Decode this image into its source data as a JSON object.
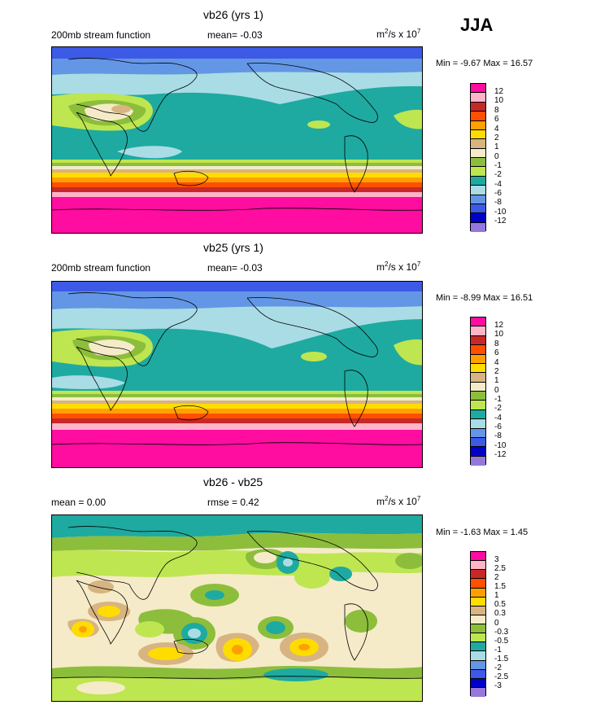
{
  "season": "JJA",
  "colors": {
    "12": "#ff0ca0",
    "10": "#ffb4c8",
    "8": "#c82828",
    "6": "#ff5000",
    "4": "#ffa000",
    "2": "#ffdc00",
    "1": "#d7b482",
    "0": "#f5ebc8",
    "-1": "#8cbe3c",
    "-2": "#bee650",
    "-4": "#1eaaa0",
    "-6": "#aadce6",
    "-8": "#6496e6",
    "-10": "#3c5ae6",
    "-12": "#0000c8",
    "bottom": "#9678dc"
  },
  "panels": [
    {
      "title": "vb26 (yrs 1)",
      "left_label": "200mb stream function",
      "center_label": "mean=  -0.03",
      "units": "m",
      "units_suffix": "/s x 10",
      "units_sup1": "2",
      "units_sup2": "7",
      "min_label": "Min =  -9.67 Max =  16.57",
      "legend_labels": [
        "12",
        "10",
        "8",
        "6",
        "4",
        "2",
        "1",
        "0",
        "-1",
        "-2",
        "-4",
        "-6",
        "-8",
        "-10",
        "-12"
      ]
    },
    {
      "title": "vb25 (yrs 1)",
      "left_label": "200mb stream function",
      "center_label": "mean=  -0.03",
      "units": "m",
      "units_suffix": "/s x 10",
      "units_sup1": "2",
      "units_sup2": "7",
      "min_label": "Min =  -8.99 Max =  16.51",
      "legend_labels": [
        "12",
        "10",
        "8",
        "6",
        "4",
        "2",
        "1",
        "0",
        "-1",
        "-2",
        "-4",
        "-6",
        "-8",
        "-10",
        "-12"
      ]
    },
    {
      "title": "vb26 - vb25",
      "left_label": "mean =   0.00",
      "center_label": "rmse =   0.42",
      "units": "m",
      "units_suffix": "/s x 10",
      "units_sup1": "2",
      "units_sup2": "7",
      "min_label": "Min =  -1.63 Max =   1.45",
      "legend_labels": [
        "3",
        "2.5",
        "2",
        "1.5",
        "1",
        "0.5",
        "0.3",
        "0",
        "-0.3",
        "-0.5",
        "-1",
        "-1.5",
        "-2",
        "-2.5",
        "-3"
      ]
    }
  ]
}
